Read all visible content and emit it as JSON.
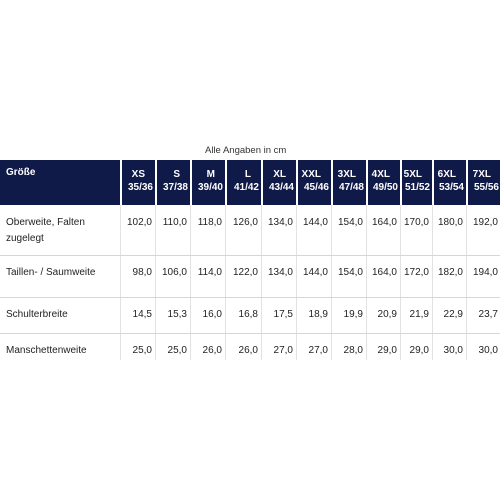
{
  "caption": "Alle Angaben in cm",
  "table": {
    "header": "Größe",
    "sizes": [
      {
        "size": "XS",
        "range": "35/36"
      },
      {
        "size": "S",
        "range": "37/38"
      },
      {
        "size": "M",
        "range": "39/40"
      },
      {
        "size": "L",
        "range": "41/42"
      },
      {
        "size": "XL",
        "range": "43/44"
      },
      {
        "size": "XXL",
        "range": "45/46"
      },
      {
        "size": "3XL",
        "range": "47/48"
      },
      {
        "size": "4XL",
        "range": "49/50"
      },
      {
        "size": "5XL",
        "range": "51/52"
      },
      {
        "size": "6XL",
        "range": "53/54"
      },
      {
        "size": "7XL",
        "range": "55/56"
      }
    ],
    "rows": [
      {
        "label": "Oberweite, Falten zugelegt",
        "values": [
          "102,0",
          "110,0",
          "118,0",
          "126,0",
          "134,0",
          "144,0",
          "154,0",
          "164,0",
          "170,0",
          "180,0",
          "192,0"
        ]
      },
      {
        "label": "Taillen- / Saumweite",
        "values": [
          "98,0",
          "106,0",
          "114,0",
          "122,0",
          "134,0",
          "144,0",
          "154,0",
          "164,0",
          "172,0",
          "182,0",
          "194,0"
        ]
      },
      {
        "label": "Schulterbreite",
        "values": [
          "14,5",
          "15,3",
          "16,0",
          "16,8",
          "17,5",
          "18,9",
          "19,9",
          "20,9",
          "21,9",
          "22,9",
          "23,7"
        ]
      },
      {
        "label": "Manschettenweite",
        "values": [
          "25,0",
          "25,0",
          "26,0",
          "26,0",
          "27,0",
          "27,0",
          "28,0",
          "29,0",
          "29,0",
          "30,0",
          "30,0"
        ]
      }
    ]
  }
}
